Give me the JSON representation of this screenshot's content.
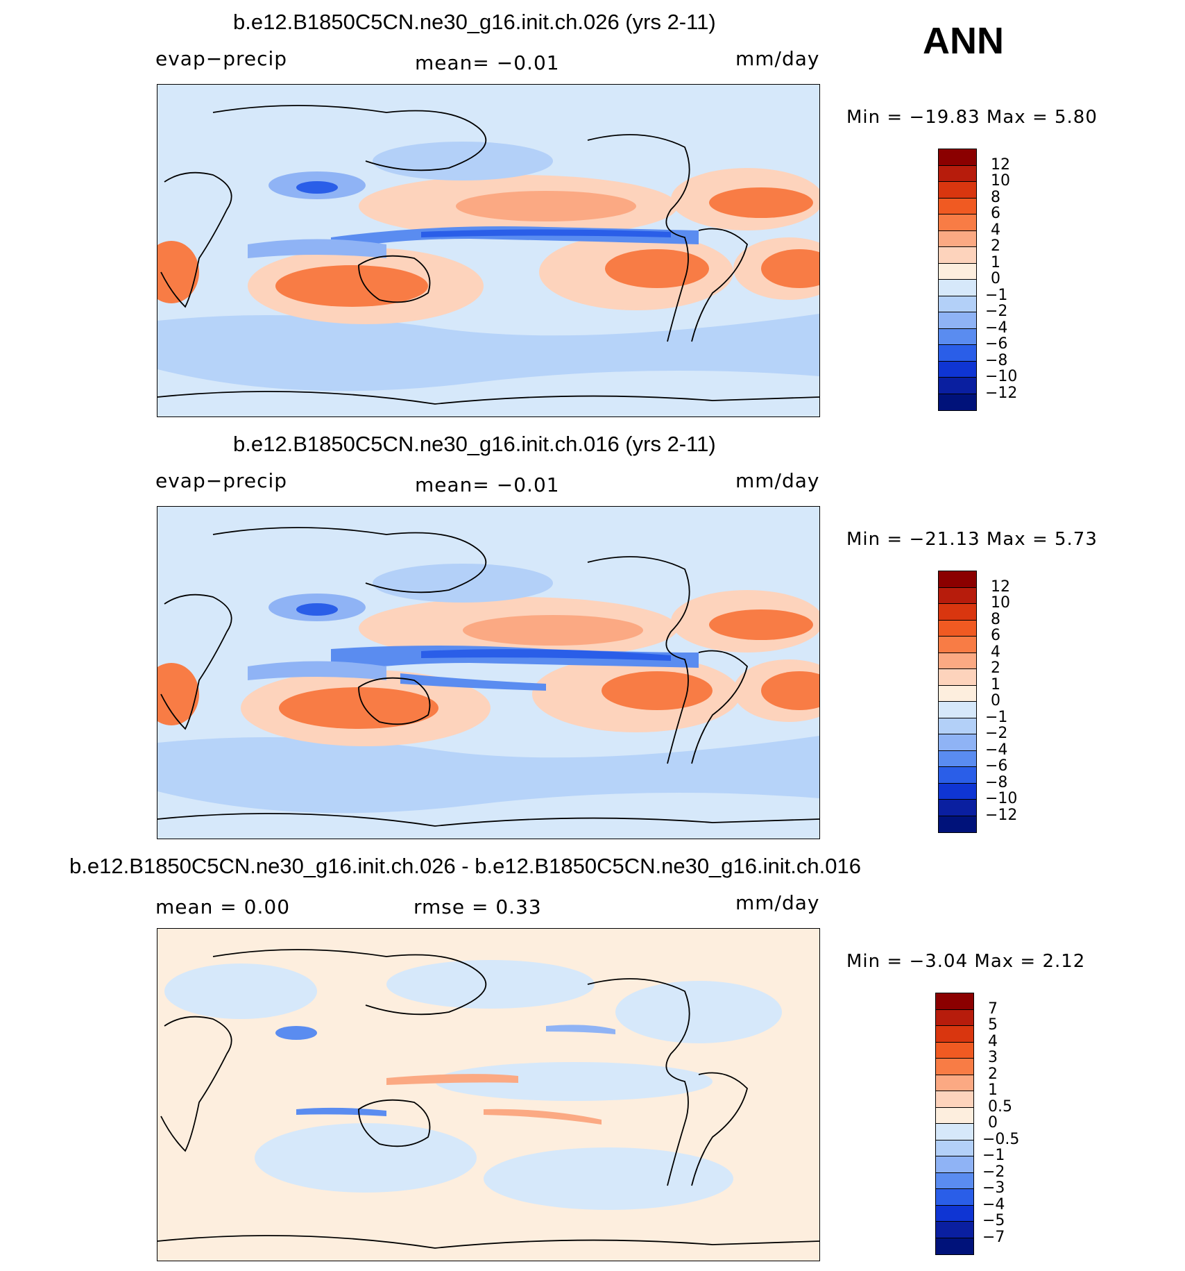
{
  "season_label": "ANN",
  "panels": [
    {
      "title": "b.e12.B1850C5CN.ne30_g16.init.ch.026 (yrs 2-11)",
      "left_label": "evap−precip",
      "center_label": "mean=   −0.01",
      "units": "mm/day",
      "min_label": "Min  =  −19.83  Max  =     5.80",
      "colorbar_labels": [
        "12",
        "10",
        "8",
        "6",
        "4",
        "2",
        "1",
        "0",
        "−1",
        "−2",
        "−4",
        "−6",
        "−8",
        "−10",
        "−12"
      ]
    },
    {
      "title": "b.e12.B1850C5CN.ne30_g16.init.ch.016 (yrs 2-11)",
      "left_label": "evap−precip",
      "center_label": "mean=   −0.01",
      "units": "mm/day",
      "min_label": "Min  =  −21.13  Max  =     5.73",
      "colorbar_labels": [
        "12",
        "10",
        "8",
        "6",
        "4",
        "2",
        "1",
        "0",
        "−1",
        "−2",
        "−4",
        "−6",
        "−8",
        "−10",
        "−12"
      ]
    },
    {
      "title": "b.e12.B1850C5CN.ne30_g16.init.ch.026 - b.e12.B1850C5CN.ne30_g16.init.ch.016",
      "left_label": "mean  =      0.00",
      "center_label": "rmse  =      0.33",
      "units": "mm/day",
      "min_label": "Min  =     −3.04  Max  =     2.12",
      "colorbar_labels": [
        "7",
        "5",
        "4",
        "3",
        "2",
        "1",
        "0.5",
        "0",
        "−0.5",
        "−1",
        "−2",
        "−3",
        "−4",
        "−5",
        "−7"
      ]
    }
  ],
  "colorbar_colors": [
    "#8b0000",
    "#b71c0c",
    "#d9360f",
    "#f05a22",
    "#f87c45",
    "#fba983",
    "#fdd3bc",
    "#fdeede",
    "#d6e8fa",
    "#b3d0f8",
    "#8fb3f5",
    "#5a8cf0",
    "#2a5ee8",
    "#0f35d3",
    "#0a1fa0",
    "#00127a"
  ]
}
